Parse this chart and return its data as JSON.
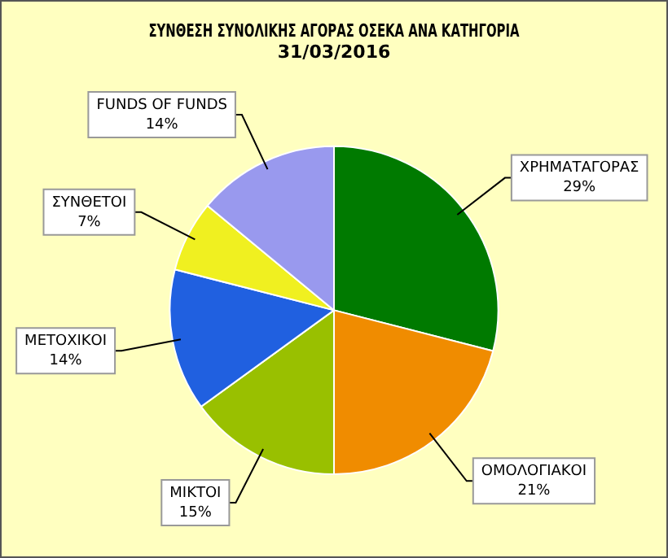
{
  "chart_data": {
    "type": "pie",
    "title": "ΣΥΝΘΕΣΗ ΣΥΝΟΛΙΚΗΣ ΑΓΟΡΑΣ ΟΣΕΚΑ ΑΝΑ ΚΑΤΗΓΟΡΙΑ",
    "subtitle": "31/03/2016",
    "categories": [
      "ΧΡΗΜΑΤΑΓΟΡΑΣ",
      "ΟΜΟΛΟΓΙΑΚΟΙ",
      "ΜΙΚΤΟΙ",
      "ΜΕΤΟΧΙΚΟΙ",
      "ΣΥΝΘΕΤΟΙ",
      "FUNDS OF FUNDS"
    ],
    "values": [
      29,
      21,
      15,
      14,
      7,
      14
    ],
    "colors": [
      "#007a00",
      "#f08c00",
      "#99c000",
      "#2060e0",
      "#f0f020",
      "#9999ee"
    ],
    "value_labels": [
      "29%",
      "21%",
      "15%",
      "14%",
      "7%",
      "14%"
    ]
  }
}
